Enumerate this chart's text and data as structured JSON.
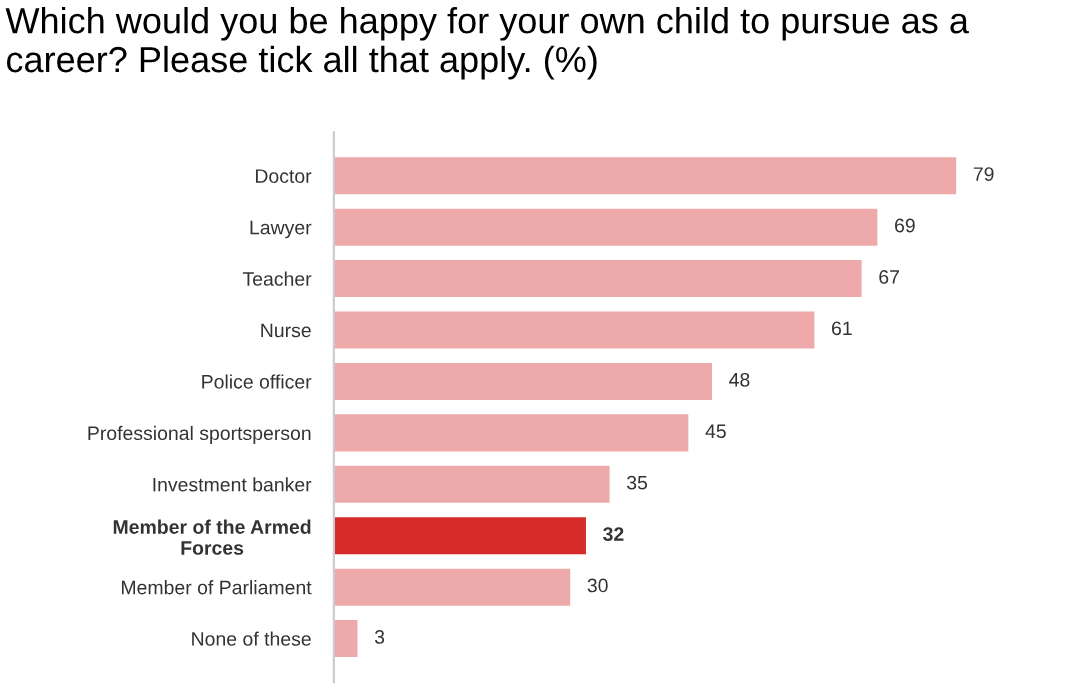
{
  "chart_data": {
    "type": "bar",
    "orientation": "horizontal",
    "title": "Which would you be happy for your own child to pursue as a career? Please tick all that apply. (%)",
    "categories": [
      "Doctor",
      "Lawyer",
      "Teacher",
      "Nurse",
      "Police officer",
      "Professional sportsperson",
      "Investment banker",
      "Member of the Armed\nForces",
      "Member of Parliament",
      "None of these"
    ],
    "values": [
      79,
      69,
      67,
      61,
      48,
      45,
      35,
      32,
      30,
      3
    ],
    "colors": [
      "#eeaaaa",
      "#eeaaaa",
      "#eeaaaa",
      "#eeaaaa",
      "#eeaaaa",
      "#eeaaaa",
      "#eeaaaa",
      "#d52b2b",
      "#eeaaaa",
      "#eeaaaa"
    ],
    "data_labels": true,
    "grid": false,
    "legend": false
  }
}
